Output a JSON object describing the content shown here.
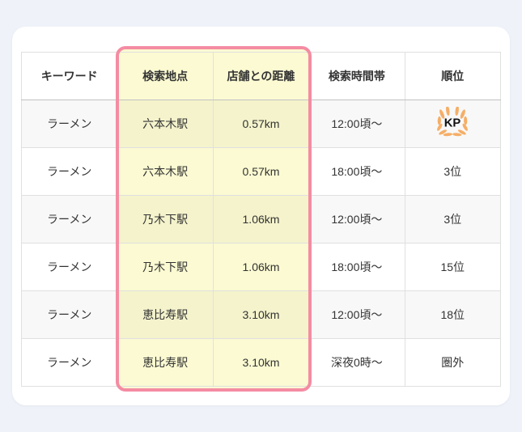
{
  "colors": {
    "page_bg": "#EFF3F9",
    "card_bg": "#FFFFFF",
    "highlight_fill": "#FBFAD2",
    "highlight_border": "#F48CA3",
    "table_outer_border": "#A7A7A7",
    "grid_line": "#E0E0E0",
    "header_divider": "#C2C2C2",
    "row_alt_tint": "#F7F7F7",
    "text": "#333333",
    "wreath_orange": "#F5AE67",
    "kp_text": "#111111"
  },
  "chart_data": {
    "type": "table",
    "title": "",
    "columns": [
      "キーワード",
      "検索地点",
      "店舗との距離",
      "検索時間帯",
      "順位"
    ],
    "highlighted_columns": [
      1,
      2
    ],
    "rows": [
      {
        "keyword": "ラーメン",
        "location": "六本木駅",
        "distance": "0.57km",
        "time": "12:00頃〜",
        "rank": "",
        "rank_is_icon": true
      },
      {
        "keyword": "ラーメン",
        "location": "六本木駅",
        "distance": "0.57km",
        "time": "18:00頃〜",
        "rank": "3位",
        "rank_is_icon": false
      },
      {
        "keyword": "ラーメン",
        "location": "乃木下駅",
        "distance": "1.06km",
        "time": "12:00頃〜",
        "rank": "3位",
        "rank_is_icon": false
      },
      {
        "keyword": "ラーメン",
        "location": "乃木下駅",
        "distance": "1.06km",
        "time": "18:00頃〜",
        "rank": "15位",
        "rank_is_icon": false
      },
      {
        "keyword": "ラーメン",
        "location": "恵比寿駅",
        "distance": "3.10km",
        "time": "12:00頃〜",
        "rank": "18位",
        "rank_is_icon": false
      },
      {
        "keyword": "ラーメン",
        "location": "恵比寿駅",
        "distance": "3.10km",
        "time": "深夜0時〜",
        "rank": "圏外",
        "rank_is_icon": false
      }
    ]
  },
  "rank_icon": {
    "name": "kp-laurel-wreath",
    "label": "KP"
  }
}
